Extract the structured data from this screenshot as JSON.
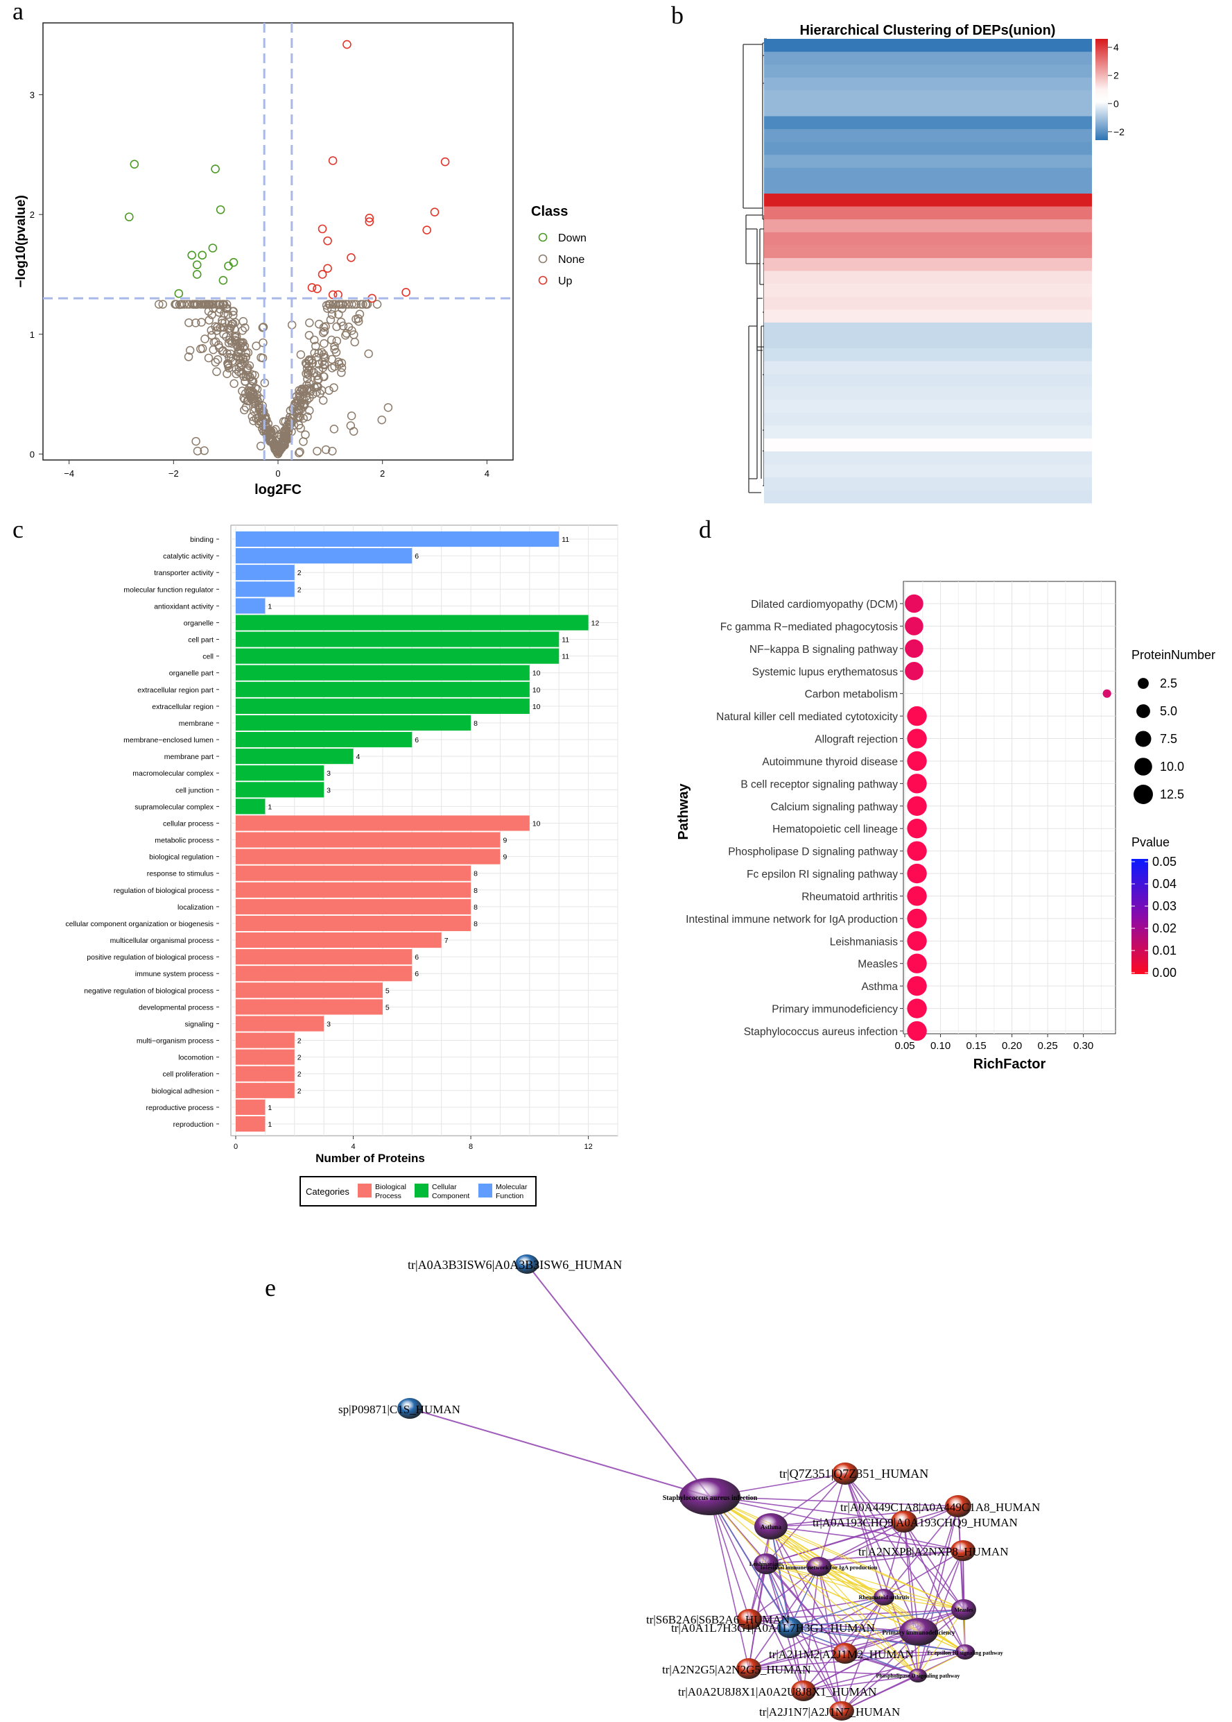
{
  "panel_letters": [
    "a",
    "b",
    "c",
    "d",
    "e"
  ],
  "chart_data": [
    {
      "panel": "a",
      "type": "scatter",
      "title": "",
      "xlabel": "log2FC",
      "ylabel": "−log10(pvalue)",
      "xlim": [
        -4.5,
        4.5
      ],
      "ylim": [
        -0.05,
        3.6
      ],
      "xticks": [
        -4,
        -2,
        0,
        2,
        4
      ],
      "xtick_labels": [
        "−4",
        "−2",
        "0",
        "2",
        "4"
      ],
      "yticks": [
        0,
        1,
        2,
        3
      ],
      "vlines": [
        -0.263,
        0.263
      ],
      "hline": 1.3,
      "legend_title": "Class",
      "legend": [
        {
          "name": "Down",
          "color": "#4a9a22"
        },
        {
          "name": "None",
          "color": "#8c7b6a"
        },
        {
          "name": "Up",
          "color": "#e2352a"
        }
      ],
      "series": [
        {
          "name": "Down",
          "points": [
            [
              -2.75,
              2.42
            ],
            [
              -2.85,
              1.98
            ],
            [
              -1.2,
              2.38
            ],
            [
              -1.1,
              2.04
            ],
            [
              -1.65,
              1.66
            ],
            [
              -1.45,
              1.66
            ],
            [
              -1.25,
              1.72
            ],
            [
              -1.55,
              1.58
            ],
            [
              -1.55,
              1.5
            ],
            [
              -0.85,
              1.6
            ],
            [
              -0.95,
              1.57
            ],
            [
              -1.05,
              1.45
            ],
            [
              -1.9,
              1.34
            ]
          ]
        },
        {
          "name": "Up",
          "points": [
            [
              1.32,
              3.42
            ],
            [
              1.05,
              2.45
            ],
            [
              3.2,
              2.44
            ],
            [
              3.0,
              2.02
            ],
            [
              1.75,
              1.97
            ],
            [
              1.75,
              1.94
            ],
            [
              2.85,
              1.87
            ],
            [
              0.85,
              1.88
            ],
            [
              0.95,
              1.78
            ],
            [
              1.4,
              1.64
            ],
            [
              0.95,
              1.55
            ],
            [
              0.85,
              1.5
            ],
            [
              0.65,
              1.39
            ],
            [
              0.75,
              1.38
            ],
            [
              1.05,
              1.33
            ],
            [
              1.15,
              1.33
            ],
            [
              1.8,
              1.3
            ],
            [
              2.45,
              1.35
            ]
          ]
        },
        {
          "name": "None",
          "generated": true,
          "count": 560,
          "seed": 7
        }
      ]
    },
    {
      "panel": "b",
      "type": "heatmap",
      "title": "Hierarchical Clustering of DEPs(union)",
      "colorbar_ticks": [
        4,
        2,
        0,
        -2
      ],
      "colorbar_tick_labels": [
        "4",
        "2",
        "0",
        "−2"
      ],
      "vmin": -2.6,
      "vmax": 4.6,
      "values": [
        -2.5,
        -1.7,
        -1.6,
        -1.4,
        -1.3,
        -1.3,
        -2.2,
        -1.8,
        -1.9,
        -1.6,
        -1.8,
        -1.8,
        4.5,
        2.8,
        1.9,
        2.5,
        2.4,
        1.2,
        0.6,
        0.5,
        0.6,
        0.4,
        -0.7,
        -0.7,
        -0.6,
        -0.4,
        -0.45,
        -0.4,
        -0.35,
        -0.4,
        -0.3,
        0.05,
        -0.4,
        -0.35,
        -0.45,
        -0.5
      ]
    },
    {
      "panel": "c",
      "type": "bar",
      "orientation": "horizontal",
      "xlabel": "Number of Proteins",
      "xlim": [
        0,
        13
      ],
      "xticks": [
        0,
        4,
        8,
        12
      ],
      "legend_title": "Categories",
      "legend": [
        {
          "name": "Biological Process",
          "lines": [
            "Biological",
            "Process"
          ],
          "color": "#f8766d"
        },
        {
          "name": "Cellular Component",
          "lines": [
            "Cellular",
            "Component"
          ],
          "color": "#00ba38"
        },
        {
          "name": "Molecular Function",
          "lines": [
            "Molecular",
            "Function"
          ],
          "color": "#619cff"
        }
      ],
      "categories": [
        "binding",
        "catalytic activity",
        "transporter activity",
        "molecular function regulator",
        "antioxidant activity",
        "organelle",
        "cell part",
        "cell",
        "organelle part",
        "extracellular region part",
        "extracellular region",
        "membrane",
        "membrane−enclosed lumen",
        "membrane part",
        "macromolecular complex",
        "cell junction",
        "supramolecular complex",
        "cellular process",
        "metabolic process",
        "biological regulation",
        "response to stimulus",
        "regulation of biological process",
        "localization",
        "cellular component organization or biogenesis",
        "multicellular organismal process",
        "positive regulation of biological process",
        "immune system process",
        "negative regulation of biological process",
        "developmental process",
        "signaling",
        "multi−organism process",
        "locomotion",
        "cell proliferation",
        "biological adhesion",
        "reproductive process",
        "reproduction"
      ],
      "values": [
        11,
        6,
        2,
        2,
        1,
        12,
        11,
        11,
        10,
        10,
        10,
        8,
        6,
        4,
        3,
        3,
        1,
        10,
        9,
        9,
        8,
        8,
        8,
        8,
        7,
        6,
        6,
        5,
        5,
        3,
        2,
        2,
        2,
        2,
        1,
        1
      ],
      "groups": [
        "MF",
        "MF",
        "MF",
        "MF",
        "MF",
        "CC",
        "CC",
        "CC",
        "CC",
        "CC",
        "CC",
        "CC",
        "CC",
        "CC",
        "CC",
        "CC",
        "CC",
        "BP",
        "BP",
        "BP",
        "BP",
        "BP",
        "BP",
        "BP",
        "BP",
        "BP",
        "BP",
        "BP",
        "BP",
        "BP",
        "BP",
        "BP",
        "BP",
        "BP",
        "BP",
        "BP"
      ]
    },
    {
      "panel": "d",
      "type": "scatter",
      "subtype": "bubble",
      "xlabel": "RichFactor",
      "ylabel": "Pathway",
      "xlim": [
        0.05,
        0.345
      ],
      "xticks": [
        0.05,
        0.1,
        0.15,
        0.2,
        0.25,
        0.3
      ],
      "xtick_labels": [
        "0.05",
        "0.10",
        "0.15",
        "0.20",
        "0.25",
        "0.30"
      ],
      "size_legend_title": "ProteinNumber",
      "size_legend": [
        "2.5",
        "5.0",
        "7.5",
        "10.0",
        "12.5"
      ],
      "color_legend_title": "Pvalue",
      "color_legend_ticks": [
        "0.05",
        "0.04",
        "0.03",
        "0.02",
        "0.01",
        "0.00"
      ],
      "categories": [
        "Dilated cardiomyopathy (DCM)",
        "Fc gamma R−mediated phagocytosis",
        "NF−kappa B signaling pathway",
        "Systemic lupus erythematosus",
        "Carbon metabolism",
        "Natural killer cell mediated cytotoxicity",
        "Allograft rejection",
        "Autoimmune thyroid disease",
        "B cell receptor signaling pathway",
        "Calcium signaling pathway",
        "Hematopoietic cell lineage",
        "Phospholipase D signaling pathway",
        "Fc epsilon RI signaling pathway",
        "Rheumatoid arthritis",
        "Intestinal immune network for IgA production",
        "Leishmaniasis",
        "Measles",
        "Asthma",
        "Primary immunodeficiency",
        "Staphylococcus aureus infection"
      ],
      "richfactor": [
        0.063,
        0.063,
        0.063,
        0.063,
        0.333,
        0.067,
        0.067,
        0.067,
        0.067,
        0.067,
        0.067,
        0.067,
        0.067,
        0.067,
        0.067,
        0.067,
        0.067,
        0.067,
        0.067,
        0.067
      ],
      "protein_number": [
        11,
        11,
        11,
        11,
        1,
        13,
        13,
        13,
        13,
        13,
        13,
        13,
        13,
        13,
        13,
        13,
        13,
        13,
        13,
        13
      ],
      "pvalue": [
        0.004,
        0.004,
        0.004,
        0.004,
        0.008,
        0.0005,
        0.0005,
        0.0005,
        0.0005,
        0.0005,
        0.0005,
        0.0005,
        0.0005,
        0.0005,
        0.0005,
        0.0005,
        0.0005,
        0.0005,
        0.0005,
        0.0005
      ]
    }
  ],
  "network": {
    "panel": "e",
    "nodes": [
      {
        "label": "tr|A0A3B3ISW6|A0A3B3ISW6_HUMAN",
        "kind": "protein",
        "color": "#2a6db0"
      },
      {
        "label": "sp|P09871|C1S_HUMAN",
        "kind": "protein",
        "color": "#2a6db0"
      },
      {
        "label": "Staphylococcus aureus infection",
        "kind": "pathway",
        "color": "#7b2d8e"
      },
      {
        "label": "tr|Q7Z351|Q7Z351_HUMAN",
        "kind": "protein",
        "color": "#d43a1c"
      },
      {
        "label": "tr|A0A449C1A8|A0A449C1A8_HUMAN",
        "kind": "protein",
        "color": "#d43a1c"
      },
      {
        "label": "tr|A0A193CHQ9|A0A193CHQ9_HUMAN",
        "kind": "protein",
        "color": "#d43a1c"
      },
      {
        "label": "Asthma",
        "kind": "pathway",
        "color": "#7b2d8e"
      },
      {
        "label": "tr|A2NXP8|A2NXP8_HUMAN",
        "kind": "protein",
        "color": "#d43a1c"
      },
      {
        "label": "Leishmaniasis",
        "kind": "pathway",
        "color": "#7b2d8e"
      },
      {
        "label": "Intestinal immune network for IgA production",
        "kind": "pathway",
        "color": "#7b2d8e"
      },
      {
        "label": "Rheumatoid arthritis",
        "kind": "pathway",
        "color": "#7b2d8e"
      },
      {
        "label": "Measles",
        "kind": "pathway",
        "color": "#7b2d8e"
      },
      {
        "label": "tr|S6B2A6|S6B2A6_HUMAN",
        "kind": "protein",
        "color": "#d43a1c"
      },
      {
        "label": "tr|A0A1L7H3G1|A0A1L7H3G1_HUMAN",
        "kind": "protein",
        "color": "#2a6db0"
      },
      {
        "label": "Primary immunodeficiency",
        "kind": "pathway",
        "color": "#7b2d8e"
      },
      {
        "label": "Fc epsilon RI signaling pathway",
        "kind": "pathway",
        "color": "#7b2d8e"
      },
      {
        "label": "tr|A2J1M2|A2J1M2_HUMAN",
        "kind": "protein",
        "color": "#d43a1c"
      },
      {
        "label": "tr|A2N2G5|A2N2G5_HUMAN",
        "kind": "protein",
        "color": "#d43a1c"
      },
      {
        "label": "Phospholipase D signaling pathway",
        "kind": "pathway",
        "color": "#7b2d8e"
      },
      {
        "label": "tr|A0A2U8J8X1|A0A2U8J8X1_HUMAN",
        "kind": "protein",
        "color": "#d43a1c"
      },
      {
        "label": "tr|A2J1N7|A2J1N7_HUMAN",
        "kind": "protein",
        "color": "#d43a1c"
      }
    ]
  }
}
